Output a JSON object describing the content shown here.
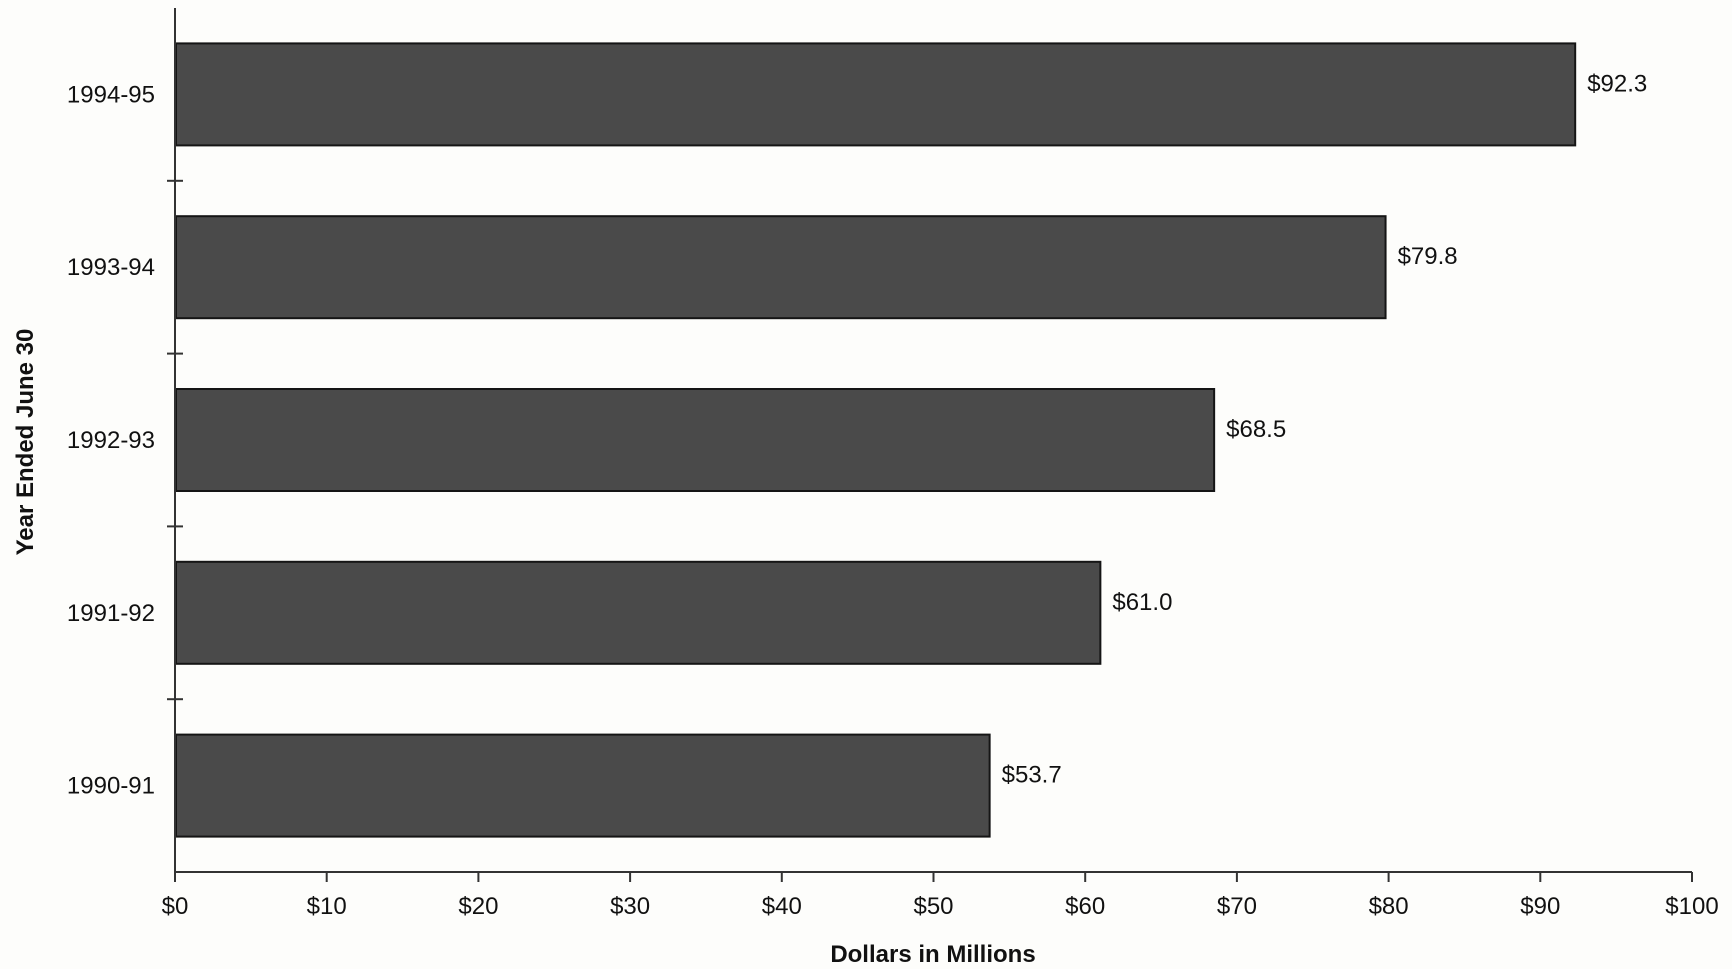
{
  "chart_data": {
    "type": "bar",
    "orientation": "horizontal",
    "categories": [
      "1994-95",
      "1993-94",
      "1992-93",
      "1991-92",
      "1990-91"
    ],
    "values": [
      92.3,
      79.8,
      68.5,
      61.0,
      53.7
    ],
    "data_labels": [
      "$92.3",
      "$79.8",
      "$68.5",
      "$61.0",
      "$53.7"
    ],
    "xlabel": "Dollars in Millions",
    "ylabel": "Year Ended June 30",
    "xlim": [
      0,
      100
    ],
    "x_ticks": [
      0,
      10,
      20,
      30,
      40,
      50,
      60,
      70,
      80,
      90,
      100
    ],
    "x_tick_labels": [
      "$0",
      "$10",
      "$20",
      "$30",
      "$40",
      "$50",
      "$60",
      "$70",
      "$80",
      "$90",
      "$100"
    ],
    "grid": false,
    "legend": "none",
    "colors": {
      "bar_fill": "#4a4a4a",
      "bar_edge": "#151515",
      "background": "#fdfdfb"
    }
  }
}
